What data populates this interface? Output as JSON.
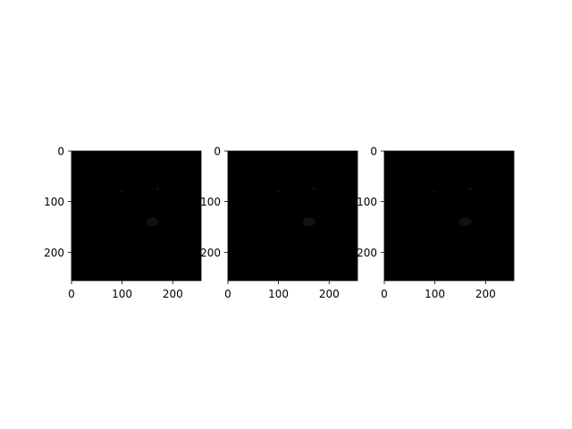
{
  "chart_data": [
    {
      "type": "image",
      "rendering": "grayscale",
      "xlim": [
        0,
        256
      ],
      "ylim": [
        256,
        0
      ],
      "xticks": [
        0,
        100,
        200
      ],
      "yticks": [
        0,
        100,
        200
      ],
      "xtick_labels": [
        "0",
        "100",
        "200"
      ],
      "ytick_labels": [
        "0",
        "100",
        "200"
      ]
    },
    {
      "type": "image",
      "rendering": "color",
      "xlim": [
        0,
        256
      ],
      "ylim": [
        256,
        0
      ],
      "xticks": [
        0,
        100,
        200
      ],
      "yticks": [
        0,
        100,
        200
      ],
      "xtick_labels": [
        "0",
        "100",
        "200"
      ],
      "ytick_labels": [
        "0",
        "100",
        "200"
      ]
    },
    {
      "type": "image",
      "rendering": "mostly-grayscale",
      "xlim": [
        0,
        256
      ],
      "ylim": [
        256,
        0
      ],
      "xticks": [
        0,
        100,
        200
      ],
      "yticks": [
        0,
        100,
        200
      ],
      "xtick_labels": [
        "0",
        "100",
        "200"
      ],
      "ytick_labels": [
        "0",
        "100",
        "200"
      ]
    }
  ],
  "palette": {
    "background": "#ffffff",
    "axis": "#000000",
    "fur_light": "#e6e6e6",
    "fur_dark": "#4a4a4a",
    "bg_gray": "#6f6f6f",
    "bg_brown": "#6b5346",
    "harness_blue": "#2a3f7a"
  }
}
